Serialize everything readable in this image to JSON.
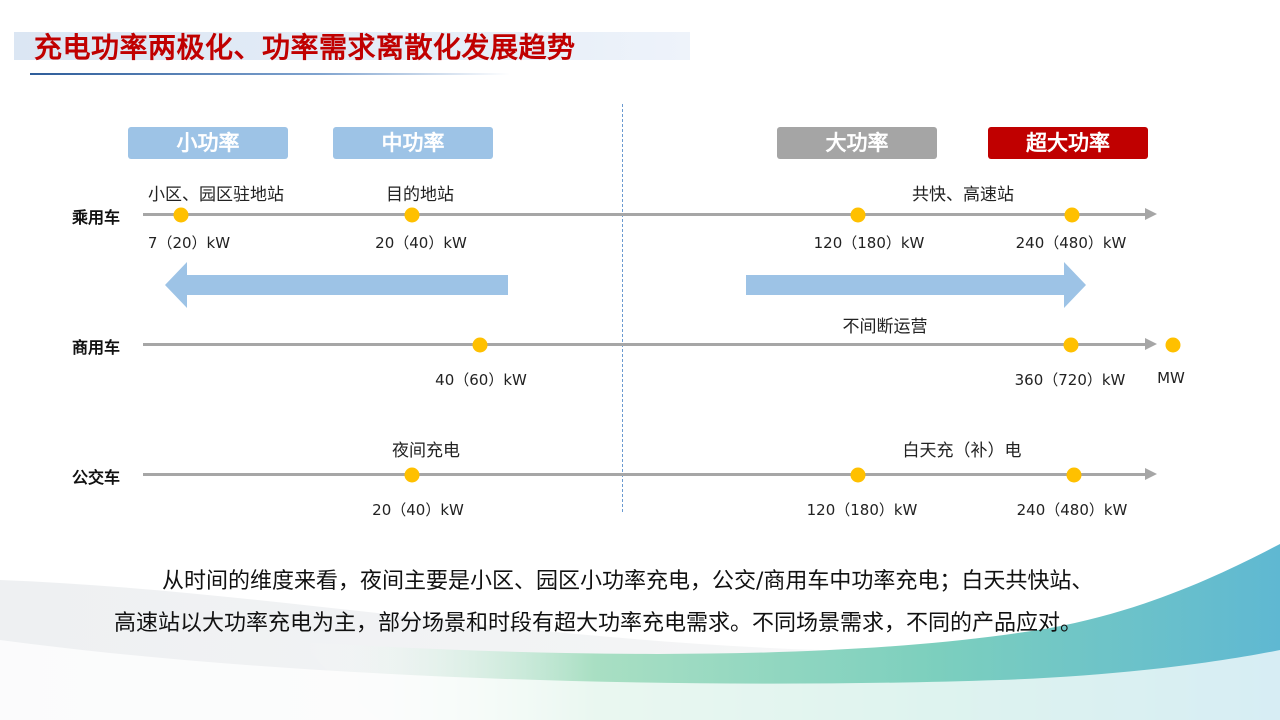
{
  "title": "充电功率两极化、功率需求离散化发展趋势",
  "tags": {
    "small": "小功率",
    "mid": "中功率",
    "large": "大功率",
    "super": "超大功率"
  },
  "rows": {
    "passenger": {
      "label": "乘用车",
      "labels": [
        "小区、园区驻地站",
        "目的地站",
        "共快、高速站"
      ],
      "values": [
        "7（20）kW",
        "20（40）kW",
        "120（180）kW",
        "240（480）kW"
      ]
    },
    "commercial": {
      "label": "商用车",
      "labels": [
        "不间断运营"
      ],
      "values": [
        "40（60）kW",
        "360（720）kW",
        "MW"
      ]
    },
    "bus": {
      "label": "公交车",
      "labels": [
        "夜间充电",
        "白天充（补）电"
      ],
      "values": [
        "20（40）kW",
        "120（180）kW",
        "240（480）kW"
      ]
    }
  },
  "colors": {
    "title": "#c00000",
    "tag_blue": "#9dc3e6",
    "tag_gray": "#a5a5a5",
    "tag_red": "#c00000",
    "dot": "#ffc000",
    "axis": "#a6a6a6",
    "arrow": "#9dc3e6"
  },
  "summary": {
    "line1": "从时间的维度来看，夜间主要是小区、园区小功率充电，公交/商用车中功率充电；白天共快站、",
    "line2": "高速站以大功率充电为主，部分场景和时段有超大功率充电需求。不同场景需求，不同的产品应对。"
  }
}
